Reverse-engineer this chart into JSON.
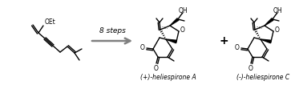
{
  "background_color": "#ffffff",
  "arrow_color": "#808080",
  "text_color": "#000000",
  "steps_text": "8 steps",
  "compound_center_label": "(+)-heliespirone A",
  "compound_right_label": "(-)-heliespirone C",
  "plus_sign": "+",
  "figsize": [
    3.78,
    1.11
  ],
  "dpi": 100
}
